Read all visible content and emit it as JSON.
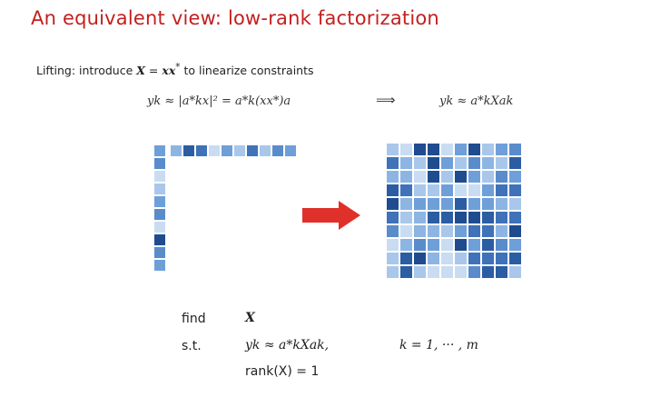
{
  "title": "An equivalent view: low-rank factorization",
  "lifting": {
    "prefix": "Lifting: introduce ",
    "var_lhs": "X",
    "eq": " = ",
    "xx": "xx",
    "star": "*",
    "suffix": " to linearize constraints"
  },
  "equations": {
    "left": "yk ≈ |a*kx|² = a*k(xx*)a",
    "implies": "⟹",
    "right": "yk ≈ a*kXak"
  },
  "problem": {
    "find_label": "find",
    "find_var": "X",
    "st_label": "s.t.",
    "constraint": "yk ≈ a*kXak,",
    "index_range": "k = 1, ··· , m",
    "rank_constraint": "rank(X) = 1"
  },
  "colors": {
    "title": "#c41e1e",
    "arrow": "#e0302a",
    "grid_light": "#c9dcf2",
    "grid_dark": "#1f4c8f"
  },
  "icons": {
    "arrow": "right-arrow-icon"
  }
}
